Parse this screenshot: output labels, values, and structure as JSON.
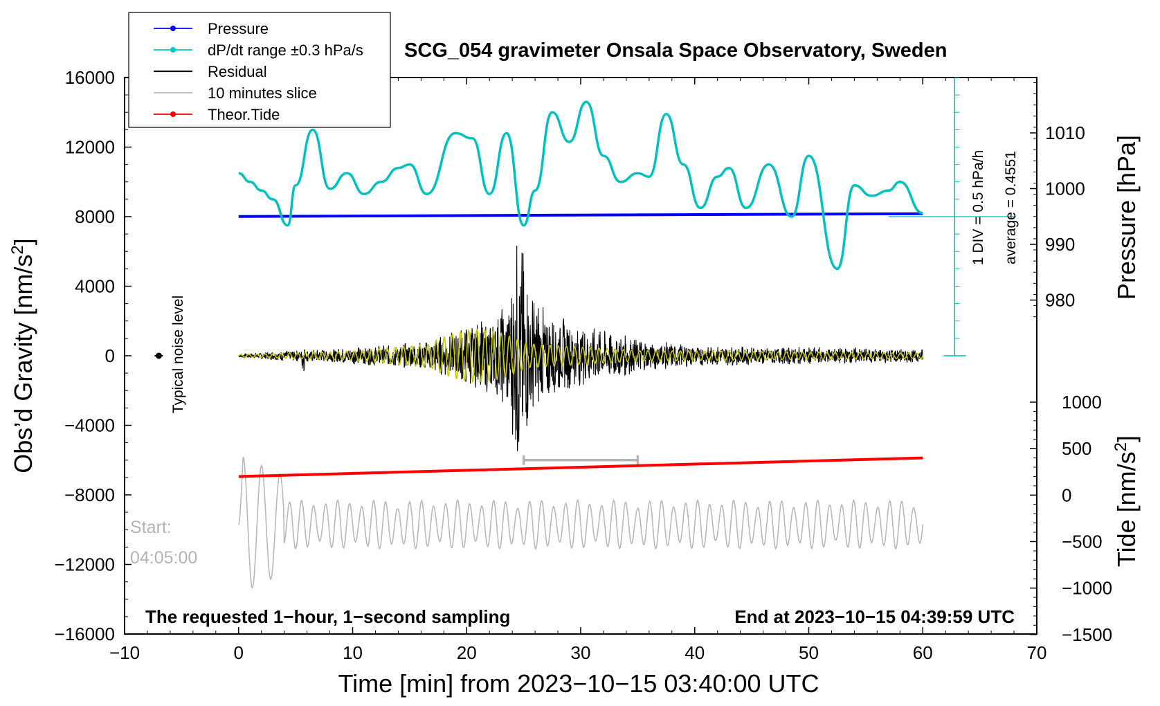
{
  "chart_data": {
    "type": "line",
    "title": "SCG_054 gravimeter Onsala Space Observatory, Sweden",
    "xlabel": "Time [min] from 2023−10−15 03:40:00 UTC",
    "ylabel": "Obs’d Gravity [nm/s",
    "ylabel_sup": "2",
    "ylabel_end": "]",
    "right_top_label": "Pressure [hPa]",
    "right_bottom_label": "Tide [nm/s",
    "right_bottom_sup": "2",
    "right_bottom_end": "]",
    "xlim": [
      -10,
      70
    ],
    "ylim": [
      -16000,
      16000
    ],
    "xticks": [
      -10,
      0,
      10,
      20,
      30,
      40,
      50,
      60,
      70
    ],
    "xtick_labels": [
      "−10",
      "0",
      "10",
      "20",
      "30",
      "40",
      "50",
      "60",
      "70"
    ],
    "yticks": [
      16000,
      12000,
      8000,
      4000,
      0,
      -4000,
      -8000,
      -12000,
      -16000
    ],
    "ytick_labels": [
      "16000",
      "12000",
      "8000",
      "4000",
      "0",
      "−4000",
      "−8000",
      "−12000",
      "−16000"
    ],
    "pressure_ticks": [
      1010,
      1000,
      990,
      980
    ],
    "pressure_tick_labels": [
      "1010",
      "1000",
      "990",
      "980"
    ],
    "tide_ticks": [
      1000,
      500,
      0,
      -500,
      -1000,
      -1500
    ],
    "tide_tick_labels": [
      "1000",
      "500",
      "0",
      "−500",
      "−1000",
      "−1500"
    ],
    "legend": [
      {
        "label": "Pressure",
        "color": "#0000ff",
        "marker": true
      },
      {
        "label": "dP/dt range ±0.3 hPa/s",
        "color": "#00c8c8",
        "marker": true
      },
      {
        "label": "Residual",
        "color": "#000000",
        "marker": false
      },
      {
        "label": "10 minutes slice",
        "color": "#b4b4b4",
        "marker": false
      },
      {
        "label": "Theor.Tide",
        "color": "#ff0000",
        "marker": true
      }
    ],
    "series": [
      {
        "name": "Pressure",
        "color": "#0000ff",
        "x": [
          0,
          60
        ],
        "y_hpa": [
          995,
          995.5
        ]
      },
      {
        "name": "dP/dt",
        "color": "#00c8c8",
        "x": [
          0,
          1,
          2,
          3,
          4.3,
          5,
          6.5,
          8,
          9.5,
          11,
          12.5,
          14,
          15,
          16.5,
          19,
          20.5,
          22,
          23.5,
          25,
          26,
          27.5,
          29,
          30.5,
          32,
          33.5,
          35,
          36,
          37.5,
          39,
          40.5,
          42,
          43,
          44.5,
          46.5,
          48.5,
          50,
          52.5,
          54,
          55.5,
          57,
          58,
          60
        ],
        "y": [
          10500,
          10000,
          9500,
          9000,
          7500,
          9800,
          13000,
          9600,
          10500,
          9300,
          10000,
          10800,
          11000,
          9300,
          12800,
          12500,
          9300,
          12800,
          7500,
          9500,
          14000,
          12300,
          14600,
          11500,
          10000,
          10500,
          10300,
          13900,
          11000,
          8500,
          10300,
          10800,
          8500,
          11000,
          8000,
          11500,
          5000,
          9800,
          9200,
          9500,
          10000,
          8200
        ]
      },
      {
        "name": "Residual",
        "color": "#000000",
        "envelope_points": [
          [
            0,
            100
          ],
          [
            4,
            300
          ],
          [
            8,
            400
          ],
          [
            12,
            600
          ],
          [
            16,
            800
          ],
          [
            18,
            1200
          ],
          [
            20,
            1800
          ],
          [
            22,
            2200
          ],
          [
            23.5,
            3000
          ],
          [
            24.3,
            5500
          ],
          [
            24.7,
            7200
          ],
          [
            25.5,
            4000
          ],
          [
            27,
            2600
          ],
          [
            30,
            1800
          ],
          [
            33,
            1300
          ],
          [
            36,
            900
          ],
          [
            40,
            600
          ],
          [
            45,
            550
          ],
          [
            50,
            500
          ],
          [
            55,
            450
          ],
          [
            60,
            400
          ]
        ]
      },
      {
        "name": "Theor.Tide",
        "color": "#ff0000",
        "x": [
          0,
          60
        ],
        "y_tide": [
          200,
          400
        ]
      }
    ],
    "slice_bracket_x": [
      25,
      35
    ],
    "noise_level_label": "Typical noise level",
    "noise_point": {
      "x": -7,
      "y": 0
    },
    "pressure_scale_note_1": "1 DIV = 0.5 hPa/h",
    "pressure_scale_note_2": "average = 0.4551",
    "start_label_1": "Start:",
    "start_label_2": "04:05:00",
    "bottom_left_note": "The requested 1−hour, 1−second sampling",
    "bottom_right_note": "End at 2023−10−15 04:39:59 UTC"
  }
}
